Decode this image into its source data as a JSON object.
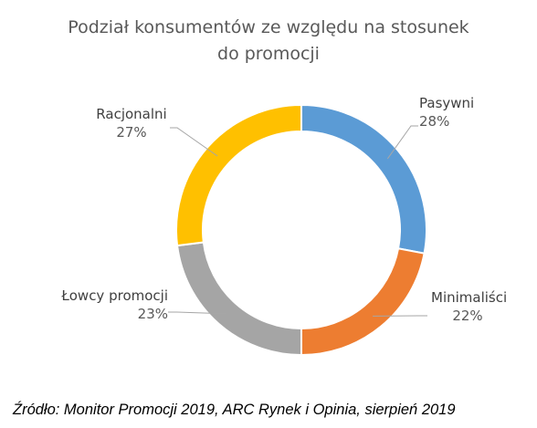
{
  "chart_data": {
    "type": "pie",
    "variant": "doughnut",
    "title": "Podział konsumentów ze względu na stosunek do promocji",
    "slices": [
      {
        "label": "Pasywni",
        "value": 28,
        "value_label": "28%",
        "color": "#5B9BD5"
      },
      {
        "label": "Minimaliści",
        "value": 22,
        "value_label": "22%",
        "color": "#ED7D31"
      },
      {
        "label": "Łowcy promocji",
        "value": 23,
        "value_label": "23%",
        "color": "#A5A5A5"
      },
      {
        "label": "Racjonalni",
        "value": 27,
        "value_label": "27%",
        "color": "#FFC000"
      }
    ],
    "legend": "none",
    "leader_line_color": "#A6A6A6"
  },
  "source": "Źródło: Monitor Promocji 2019, ARC Rynek i Opinia, sierpień 2019"
}
